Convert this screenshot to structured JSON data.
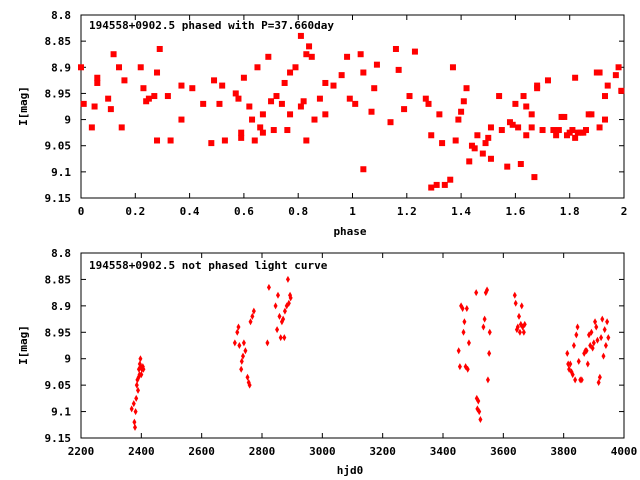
{
  "colors": {
    "points": "#ff0000",
    "axes": "#000000",
    "background": "#ffffff"
  },
  "chart_data": [
    {
      "type": "scatter",
      "title": "194558+0902.5 phased with P=37.660day",
      "xlabel": "phase",
      "ylabel": "I[mag]",
      "xlim": [
        0,
        2
      ],
      "ylim": [
        8.8,
        9.15
      ],
      "y_inverted": true,
      "grid": false,
      "marker": "filled-square",
      "x_ticks": [
        "0",
        "0.2",
        "0.4",
        "0.6",
        "0.8",
        "1",
        "1.2",
        "1.4",
        "1.6",
        "1.8",
        "2"
      ],
      "y_ticks": [
        "8.8",
        "8.85",
        "8.9",
        "8.95",
        "9",
        "9.05",
        "9.1",
        "9.15"
      ],
      "points": [
        [
          0.0,
          8.9
        ],
        [
          0.01,
          8.97
        ],
        [
          0.04,
          9.015
        ],
        [
          0.05,
          8.975
        ],
        [
          0.06,
          8.92
        ],
        [
          0.06,
          8.93
        ],
        [
          0.1,
          8.96
        ],
        [
          0.11,
          8.98
        ],
        [
          0.12,
          8.875
        ],
        [
          0.14,
          8.9
        ],
        [
          0.15,
          9.015
        ],
        [
          0.16,
          8.925
        ],
        [
          0.22,
          8.9
        ],
        [
          0.23,
          8.94
        ],
        [
          0.24,
          8.965
        ],
        [
          0.25,
          8.96
        ],
        [
          0.27,
          8.955
        ],
        [
          0.28,
          9.04
        ],
        [
          0.28,
          8.91
        ],
        [
          0.29,
          8.865
        ],
        [
          0.32,
          8.955
        ],
        [
          0.33,
          9.04
        ],
        [
          0.37,
          9.0
        ],
        [
          0.37,
          8.935
        ],
        [
          0.41,
          8.94
        ],
        [
          0.45,
          8.97
        ],
        [
          0.48,
          9.045
        ],
        [
          0.49,
          8.925
        ],
        [
          0.51,
          8.97
        ],
        [
          0.52,
          8.935
        ],
        [
          0.53,
          9.04
        ],
        [
          0.57,
          8.95
        ],
        [
          0.58,
          8.96
        ],
        [
          0.59,
          9.025
        ],
        [
          0.59,
          9.035
        ],
        [
          0.6,
          8.92
        ],
        [
          0.62,
          8.975
        ],
        [
          0.63,
          9.0
        ],
        [
          0.64,
          9.04
        ],
        [
          0.65,
          8.9
        ],
        [
          0.66,
          9.015
        ],
        [
          0.67,
          9.025
        ],
        [
          0.67,
          8.99
        ],
        [
          0.69,
          8.88
        ],
        [
          0.7,
          8.965
        ],
        [
          0.71,
          9.02
        ],
        [
          0.72,
          8.955
        ],
        [
          0.74,
          8.97
        ],
        [
          0.75,
          8.93
        ],
        [
          0.76,
          9.02
        ],
        [
          0.77,
          8.99
        ],
        [
          0.77,
          8.91
        ],
        [
          0.79,
          8.9
        ],
        [
          0.81,
          8.84
        ],
        [
          0.81,
          8.975
        ],
        [
          0.82,
          8.965
        ],
        [
          0.83,
          8.875
        ],
        [
          0.83,
          9.04
        ],
        [
          0.84,
          8.86
        ],
        [
          0.85,
          8.88
        ],
        [
          0.86,
          9.0
        ],
        [
          0.88,
          8.96
        ],
        [
          0.9,
          8.99
        ],
        [
          0.9,
          8.93
        ],
        [
          0.93,
          8.935
        ],
        [
          0.96,
          8.915
        ],
        [
          0.98,
          8.88
        ],
        [
          0.99,
          8.96
        ],
        [
          1.01,
          8.97
        ],
        [
          1.03,
          8.875
        ],
        [
          1.04,
          8.91
        ],
        [
          1.04,
          9.095
        ],
        [
          1.07,
          8.985
        ],
        [
          1.08,
          8.94
        ],
        [
          1.09,
          8.895
        ],
        [
          1.14,
          9.005
        ],
        [
          1.16,
          8.865
        ],
        [
          1.17,
          8.905
        ],
        [
          1.19,
          8.98
        ],
        [
          1.21,
          8.955
        ],
        [
          1.23,
          8.87
        ],
        [
          1.27,
          8.96
        ],
        [
          1.28,
          8.97
        ],
        [
          1.29,
          9.13
        ],
        [
          1.29,
          9.03
        ],
        [
          1.31,
          9.125
        ],
        [
          1.32,
          8.99
        ],
        [
          1.33,
          9.045
        ],
        [
          1.34,
          9.125
        ],
        [
          1.36,
          9.115
        ],
        [
          1.37,
          8.9
        ],
        [
          1.38,
          9.04
        ],
        [
          1.39,
          9.0
        ],
        [
          1.4,
          8.985
        ],
        [
          1.41,
          8.965
        ],
        [
          1.42,
          8.94
        ],
        [
          1.43,
          9.08
        ],
        [
          1.44,
          9.05
        ],
        [
          1.45,
          9.055
        ],
        [
          1.46,
          9.03
        ],
        [
          1.48,
          9.065
        ],
        [
          1.49,
          9.045
        ],
        [
          1.5,
          9.035
        ],
        [
          1.51,
          9.015
        ],
        [
          1.51,
          9.075
        ],
        [
          1.54,
          8.955
        ],
        [
          1.55,
          9.02
        ],
        [
          1.57,
          9.09
        ],
        [
          1.58,
          9.005
        ],
        [
          1.59,
          9.01
        ],
        [
          1.6,
          8.97
        ],
        [
          1.61,
          9.015
        ],
        [
          1.62,
          9.085
        ],
        [
          1.63,
          8.955
        ],
        [
          1.64,
          9.03
        ],
        [
          1.64,
          8.975
        ],
        [
          1.66,
          9.015
        ],
        [
          1.66,
          8.99
        ],
        [
          1.67,
          9.11
        ],
        [
          1.68,
          8.94
        ],
        [
          1.68,
          8.935
        ],
        [
          1.7,
          9.02
        ],
        [
          1.72,
          8.925
        ],
        [
          1.74,
          9.02
        ],
        [
          1.75,
          9.03
        ],
        [
          1.76,
          9.02
        ],
        [
          1.77,
          8.995
        ],
        [
          1.78,
          8.995
        ],
        [
          1.79,
          9.03
        ],
        [
          1.8,
          9.025
        ],
        [
          1.81,
          9.02
        ],
        [
          1.82,
          9.035
        ],
        [
          1.82,
          8.92
        ],
        [
          1.83,
          9.025
        ],
        [
          1.84,
          9.025
        ],
        [
          1.85,
          9.025
        ],
        [
          1.86,
          9.02
        ],
        [
          1.87,
          8.99
        ],
        [
          1.88,
          8.99
        ],
        [
          1.9,
          8.91
        ],
        [
          1.91,
          8.91
        ],
        [
          1.91,
          9.015
        ],
        [
          1.93,
          9.0
        ],
        [
          1.93,
          8.955
        ],
        [
          1.94,
          8.935
        ],
        [
          1.97,
          8.915
        ],
        [
          1.98,
          8.9
        ],
        [
          1.99,
          8.945
        ]
      ]
    },
    {
      "type": "scatter",
      "title": "194558+0902.5 not phased light curve",
      "xlabel": "hjd0",
      "ylabel": "I[mag]",
      "xlim": [
        2200,
        4000
      ],
      "ylim": [
        8.8,
        9.15
      ],
      "y_inverted": true,
      "grid": false,
      "marker": "filled-diamond",
      "x_ticks": [
        "2200",
        "2400",
        "2600",
        "2800",
        "3000",
        "3200",
        "3400",
        "3600",
        "3800",
        "4000"
      ],
      "y_ticks": [
        "8.8",
        "8.85",
        "8.9",
        "8.95",
        "9",
        "9.05",
        "9.1",
        "9.15"
      ],
      "points": [
        [
          2368,
          9.095
        ],
        [
          2375,
          9.085
        ],
        [
          2377,
          9.12
        ],
        [
          2379,
          9.13
        ],
        [
          2381,
          9.1
        ],
        [
          2383,
          9.075
        ],
        [
          2385,
          9.05
        ],
        [
          2387,
          9.04
        ],
        [
          2389,
          9.06
        ],
        [
          2391,
          9.035
        ],
        [
          2392,
          9.02
        ],
        [
          2394,
          9.03
        ],
        [
          2395,
          9.01
        ],
        [
          2397,
          9.0
        ],
        [
          2399,
          9.015
        ],
        [
          2400,
          9.03
        ],
        [
          2402,
          9.02
        ],
        [
          2405,
          9.015
        ],
        [
          2407,
          9.02
        ],
        [
          2710,
          8.97
        ],
        [
          2718,
          8.95
        ],
        [
          2722,
          8.94
        ],
        [
          2725,
          8.975
        ],
        [
          2731,
          9.02
        ],
        [
          2733,
          9.005
        ],
        [
          2737,
          8.995
        ],
        [
          2740,
          8.97
        ],
        [
          2745,
          8.985
        ],
        [
          2752,
          9.035
        ],
        [
          2756,
          9.045
        ],
        [
          2759,
          9.05
        ],
        [
          2762,
          8.93
        ],
        [
          2768,
          8.92
        ],
        [
          2773,
          8.91
        ],
        [
          2818,
          8.97
        ],
        [
          2823,
          8.865
        ],
        [
          2845,
          8.9
        ],
        [
          2850,
          8.945
        ],
        [
          2853,
          8.88
        ],
        [
          2858,
          8.92
        ],
        [
          2862,
          8.96
        ],
        [
          2866,
          8.93
        ],
        [
          2870,
          8.925
        ],
        [
          2874,
          8.96
        ],
        [
          2876,
          8.91
        ],
        [
          2882,
          8.9
        ],
        [
          2886,
          8.85
        ],
        [
          2889,
          8.895
        ],
        [
          2893,
          8.88
        ],
        [
          2895,
          8.885
        ],
        [
          3452,
          8.985
        ],
        [
          3456,
          9.015
        ],
        [
          3460,
          8.9
        ],
        [
          3465,
          8.905
        ],
        [
          3468,
          8.95
        ],
        [
          3471,
          8.93
        ],
        [
          3475,
          9.015
        ],
        [
          3479,
          8.905
        ],
        [
          3482,
          9.02
        ],
        [
          3486,
          8.97
        ],
        [
          3510,
          8.875
        ],
        [
          3512,
          9.075
        ],
        [
          3514,
          9.095
        ],
        [
          3517,
          9.08
        ],
        [
          3520,
          9.1
        ],
        [
          3524,
          9.115
        ],
        [
          3534,
          8.94
        ],
        [
          3538,
          8.925
        ],
        [
          3542,
          8.875
        ],
        [
          3546,
          8.87
        ],
        [
          3549,
          9.04
        ],
        [
          3553,
          8.99
        ],
        [
          3555,
          8.95
        ],
        [
          3638,
          8.88
        ],
        [
          3641,
          8.895
        ],
        [
          3645,
          8.945
        ],
        [
          3648,
          8.94
        ],
        [
          3652,
          8.92
        ],
        [
          3655,
          8.95
        ],
        [
          3658,
          8.935
        ],
        [
          3661,
          8.9
        ],
        [
          3664,
          8.94
        ],
        [
          3668,
          8.95
        ],
        [
          3671,
          8.935
        ],
        [
          3812,
          8.99
        ],
        [
          3815,
          9.01
        ],
        [
          3818,
          9.02
        ],
        [
          3822,
          9.01
        ],
        [
          3826,
          9.025
        ],
        [
          3830,
          9.03
        ],
        [
          3834,
          8.975
        ],
        [
          3838,
          9.04
        ],
        [
          3842,
          8.955
        ],
        [
          3846,
          8.94
        ],
        [
          3850,
          9.005
        ],
        [
          3855,
          9.04
        ],
        [
          3860,
          9.04
        ],
        [
          3868,
          8.99
        ],
        [
          3872,
          8.985
        ],
        [
          3876,
          8.985
        ],
        [
          3880,
          9.01
        ],
        [
          3884,
          8.955
        ],
        [
          3888,
          8.975
        ],
        [
          3892,
          8.95
        ],
        [
          3896,
          8.98
        ],
        [
          3900,
          8.97
        ],
        [
          3904,
          8.93
        ],
        [
          3908,
          8.94
        ],
        [
          3912,
          8.965
        ],
        [
          3916,
          9.045
        ],
        [
          3920,
          9.035
        ],
        [
          3924,
          8.96
        ],
        [
          3928,
          8.925
        ],
        [
          3932,
          8.995
        ],
        [
          3936,
          8.945
        ],
        [
          3940,
          8.975
        ],
        [
          3944,
          8.93
        ],
        [
          3948,
          8.96
        ]
      ]
    }
  ]
}
